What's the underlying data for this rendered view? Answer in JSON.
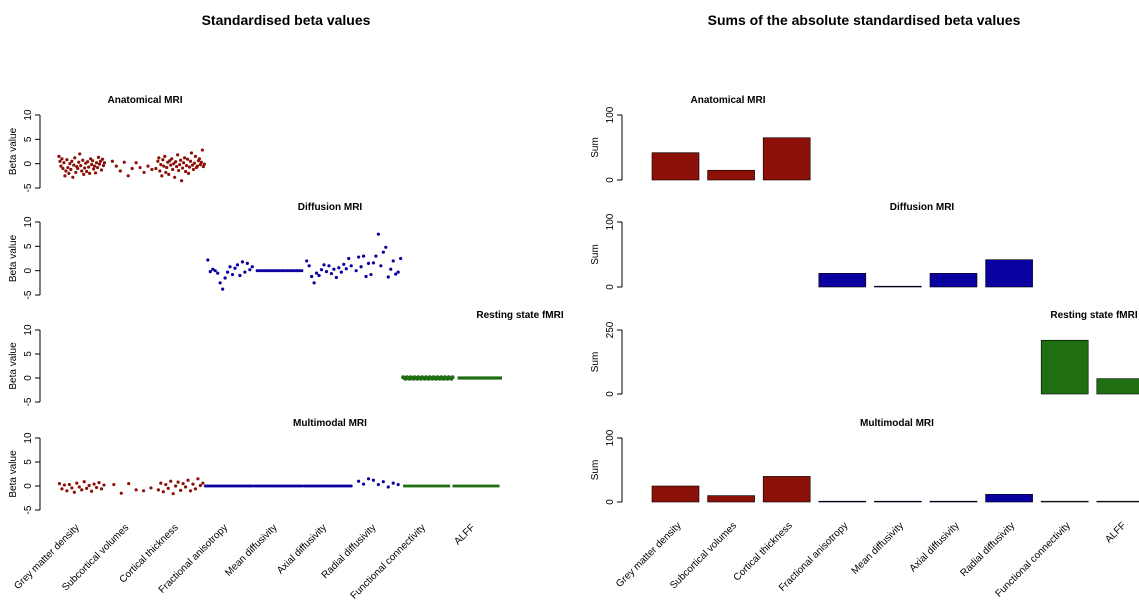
{
  "left_figure": {
    "title": "Standardised beta values",
    "ylabel": "Beta value"
  },
  "right_figure": {
    "title": "Sums of the absolute standardised beta values",
    "ylabel": "Sum"
  },
  "categories": [
    "Grey matter density",
    "Subcortical volumes",
    "Cortical thickness",
    "Fractional anisotropy",
    "Mean diffusivity",
    "Axial diffusivity",
    "Radial diffusivity",
    "Functional connectivity",
    "ALFF"
  ],
  "colors": {
    "anatomical": "#8B1108",
    "diffusion": "#0A00A0",
    "fmri": "#1F6E12"
  },
  "chart_data": [
    {
      "type": "scatter",
      "title": "Anatomical MRI",
      "ylabel": "Beta value",
      "ylim": [
        -5,
        10
      ],
      "yticks": [
        -5,
        0,
        5,
        10
      ],
      "color": "#8B1108",
      "x": [
        0.04,
        0.06,
        0.08,
        0.1,
        0.12,
        0.14,
        0.16,
        0.18,
        0.2,
        0.22,
        0.24,
        0.26,
        0.28,
        0.3,
        0.32,
        0.34,
        0.36,
        0.38,
        0.4,
        0.42,
        0.44,
        0.46,
        0.48,
        0.5,
        0.52,
        0.54,
        0.56,
        0.58,
        0.6,
        0.62,
        0.64,
        0.66,
        0.68,
        0.7,
        0.72,
        0.74,
        0.76,
        0.78,
        0.8,
        0.82,
        0.84,
        0.86,
        0.88,
        0.9,
        0.92,
        0.94,
        0.96,
        1.12,
        1.2,
        1.28,
        1.36,
        1.44,
        1.52,
        1.6,
        1.68,
        1.76,
        1.84,
        1.92,
        2.0,
        2.04,
        2.06,
        2.08,
        2.1,
        2.12,
        2.14,
        2.16,
        2.18,
        2.2,
        2.22,
        2.24,
        2.26,
        2.28,
        2.3,
        2.32,
        2.34,
        2.36,
        2.38,
        2.4,
        2.42,
        2.44,
        2.46,
        2.48,
        2.5,
        2.52,
        2.54,
        2.56,
        2.58,
        2.6,
        2.62,
        2.64,
        2.66,
        2.68,
        2.7,
        2.72,
        2.74,
        2.76,
        2.78,
        2.8,
        2.82,
        2.84,
        2.86,
        2.88,
        2.9,
        2.92,
        2.94,
        2.96,
        2.98
      ],
      "y": [
        1.5,
        0.5,
        -0.5,
        1.0,
        -1.0,
        0.2,
        -2.5,
        -1.5,
        0.8,
        -0.8,
        -2.0,
        0.0,
        -1.2,
        0.5,
        -2.8,
        -0.3,
        1.2,
        -1.8,
        -0.6,
        -1.0,
        0.3,
        2.0,
        -0.4,
        -1.5,
        0.7,
        -2.2,
        -0.9,
        0.1,
        -1.6,
        0.4,
        -0.7,
        -2.0,
        1.0,
        -0.2,
        0.6,
        -1.1,
        -0.5,
        -1.9,
        0.2,
        -0.8,
        1.3,
        -0.1,
        0.5,
        -1.3,
        0.9,
        -0.4,
        0.2,
        0.5,
        -0.5,
        -1.5,
        0.3,
        -2.5,
        -1.0,
        0.2,
        -0.8,
        -1.8,
        -0.5,
        -1.2,
        -1.0,
        0.5,
        1.2,
        -1.5,
        -0.2,
        -2.5,
        0.8,
        -0.5,
        1.5,
        -1.8,
        -0.8,
        0.3,
        -2.2,
        0.6,
        -0.3,
        1.0,
        -1.2,
        0.0,
        -2.8,
        0.4,
        -0.6,
        1.8,
        -1.4,
        -0.2,
        0.7,
        -3.5,
        -0.9,
        0.2,
        1.2,
        -1.6,
        -0.4,
        0.9,
        -2.0,
        -0.7,
        0.5,
        2.2,
        -0.3,
        -1.2,
        0.1,
        1.5,
        -0.8,
        -0.5,
        0.6,
        1.0,
        -0.2,
        0.3,
        2.8,
        -0.6,
        -0.1
      ]
    },
    {
      "type": "scatter",
      "title": "Diffusion MRI",
      "ylabel": "Beta value",
      "ylim": [
        -5,
        10
      ],
      "yticks": [
        -5,
        0,
        5,
        10
      ],
      "color": "#0A00A0",
      "x": [
        3.05,
        3.1,
        3.15,
        3.2,
        3.25,
        3.3,
        3.35,
        3.4,
        3.45,
        3.5,
        3.55,
        3.6,
        3.65,
        3.7,
        3.75,
        3.8,
        3.85,
        3.9,
        3.95,
        4.05,
        4.1,
        4.15,
        4.2,
        4.25,
        4.3,
        4.35,
        4.4,
        4.45,
        4.5,
        4.55,
        4.6,
        4.65,
        4.7,
        4.75,
        4.8,
        4.85,
        4.9,
        4.95,
        5.05,
        5.1,
        5.15,
        5.2,
        5.25,
        5.3,
        5.35,
        5.4,
        5.45,
        5.5,
        5.55,
        5.6,
        5.65,
        5.7,
        5.75,
        5.8,
        5.85,
        5.9,
        5.95,
        6.05,
        6.1,
        6.15,
        6.2,
        6.25,
        6.3,
        6.35,
        6.4,
        6.45,
        6.5,
        6.55,
        6.6,
        6.65,
        6.7,
        6.75,
        6.8,
        6.85,
        6.9,
        6.95
      ],
      "y": [
        2.2,
        -0.2,
        0.3,
        0.0,
        -0.5,
        -2.5,
        -3.8,
        -1.5,
        -0.3,
        0.8,
        -0.8,
        0.5,
        1.2,
        -1.0,
        1.8,
        -0.3,
        1.5,
        0.2,
        0.8,
        0,
        0,
        0,
        0,
        0,
        0,
        0,
        0,
        0,
        0,
        0,
        0,
        0,
        0,
        0,
        0,
        0,
        0,
        0,
        2.0,
        1.0,
        -1.2,
        -2.5,
        -0.5,
        -1.0,
        0.2,
        1.2,
        -0.2,
        1.0,
        -0.6,
        0.3,
        -1.4,
        0.6,
        -0.3,
        1.3,
        0.4,
        2.5,
        1.0,
        0.0,
        2.8,
        0.8,
        3.0,
        -1.2,
        1.5,
        -0.8,
        1.6,
        3.0,
        7.5,
        1.0,
        3.8,
        4.8,
        -1.3,
        0.3,
        2.0,
        -0.7,
        -0.3,
        2.5
      ]
    },
    {
      "type": "scatter",
      "title": "Resting state fMRI",
      "ylabel": "Beta value",
      "ylim": [
        -5,
        10
      ],
      "yticks": [
        -5,
        0,
        5,
        10
      ],
      "color": "#1F6E12",
      "x_ranges": [
        [
          7.0,
          8.0
        ],
        [
          8.1,
          9.0
        ]
      ],
      "y": [
        0,
        0
      ]
    },
    {
      "type": "scatter",
      "title": "Multimodal MRI",
      "ylabel": "Beta value",
      "ylim": [
        -5,
        10
      ],
      "yticks": [
        -5,
        0,
        5,
        10
      ],
      "colors_by_category": [
        "#8B1108",
        "#8B1108",
        "#8B1108",
        "#0A00A0",
        "#0A00A0",
        "#0A00A0",
        "#0A00A0",
        "#1F6E12",
        "#1F6E12"
      ],
      "x": [
        0.05,
        0.1,
        0.15,
        0.2,
        0.25,
        0.3,
        0.35,
        0.4,
        0.45,
        0.5,
        0.55,
        0.6,
        0.65,
        0.7,
        0.75,
        0.8,
        0.85,
        0.9,
        0.95,
        1.15,
        1.3,
        1.45,
        1.6,
        1.75,
        1.9,
        2.05,
        2.1,
        2.15,
        2.2,
        2.25,
        2.3,
        2.35,
        2.4,
        2.45,
        2.5,
        2.55,
        2.6,
        2.65,
        2.7,
        2.75,
        2.8,
        2.85,
        2.9,
        2.95,
        6.1,
        6.2,
        6.3,
        6.4,
        6.5,
        6.6,
        6.7,
        6.8,
        6.9
      ],
      "y": [
        0.5,
        -0.6,
        0.2,
        -1.0,
        0.3,
        -0.4,
        -1.3,
        0.6,
        -0.2,
        -0.8,
        0.9,
        -0.5,
        0.1,
        -1.1,
        0.4,
        -0.3,
        0.7,
        -0.6,
        0.2,
        0.3,
        -1.5,
        0.5,
        -0.8,
        -1.0,
        -0.4,
        -0.8,
        0.6,
        -1.2,
        0.3,
        -0.5,
        1.0,
        -1.6,
        0.0,
        0.8,
        -0.9,
        0.5,
        -0.2,
        1.2,
        -1.0,
        0.4,
        -0.6,
        1.5,
        0.1,
        0.6,
        1.0,
        0.4,
        1.5,
        1.2,
        0.3,
        0.9,
        -0.2,
        0.6,
        0.3
      ],
      "flat_categories": [
        3,
        4,
        5,
        7,
        8
      ]
    },
    {
      "type": "bar",
      "title": "Anatomical MRI",
      "ylabel": "Sum",
      "ylim": [
        0,
        100
      ],
      "yticks": [
        0,
        100
      ],
      "values": [
        42,
        15,
        65,
        0,
        0,
        0,
        0,
        0,
        0
      ],
      "colors": [
        "#8B1108",
        "#8B1108",
        "#8B1108",
        "#0A00A0",
        "#0A00A0",
        "#0A00A0",
        "#0A00A0",
        "#1F6E12",
        "#1F6E12"
      ],
      "show": [
        true,
        true,
        true,
        false,
        false,
        false,
        false,
        false,
        false
      ]
    },
    {
      "type": "bar",
      "title": "Diffusion MRI",
      "ylabel": "Sum",
      "ylim": [
        0,
        100
      ],
      "yticks": [
        0,
        100
      ],
      "values": [
        0,
        0,
        0,
        21,
        0.5,
        21,
        42,
        0,
        0
      ],
      "colors": [
        "#8B1108",
        "#8B1108",
        "#8B1108",
        "#0A00A0",
        "#0A00A0",
        "#0A00A0",
        "#0A00A0",
        "#1F6E12",
        "#1F6E12"
      ],
      "show": [
        false,
        false,
        false,
        true,
        true,
        true,
        true,
        false,
        false
      ]
    },
    {
      "type": "bar",
      "title": "Resting state fMRI",
      "ylabel": "Sum",
      "ylim": [
        0,
        250
      ],
      "yticks": [
        0,
        250
      ],
      "values": [
        0,
        0,
        0,
        0,
        0,
        0,
        0,
        210,
        60
      ],
      "colors": [
        "#8B1108",
        "#8B1108",
        "#8B1108",
        "#0A00A0",
        "#0A00A0",
        "#0A00A0",
        "#0A00A0",
        "#1F6E12",
        "#1F6E12"
      ],
      "show": [
        false,
        false,
        false,
        false,
        false,
        false,
        false,
        true,
        true
      ]
    },
    {
      "type": "bar",
      "title": "Multimodal MRI",
      "ylabel": "Sum",
      "ylim": [
        0,
        100
      ],
      "yticks": [
        0,
        100
      ],
      "values": [
        25,
        10,
        40,
        1,
        0.5,
        0.5,
        12,
        0.5,
        0.5
      ],
      "colors": [
        "#8B1108",
        "#8B1108",
        "#8B1108",
        "#0A00A0",
        "#0A00A0",
        "#0A00A0",
        "#0A00A0",
        "#1F6E12",
        "#1F6E12"
      ],
      "show": [
        true,
        true,
        true,
        true,
        true,
        true,
        true,
        true,
        true
      ]
    }
  ]
}
